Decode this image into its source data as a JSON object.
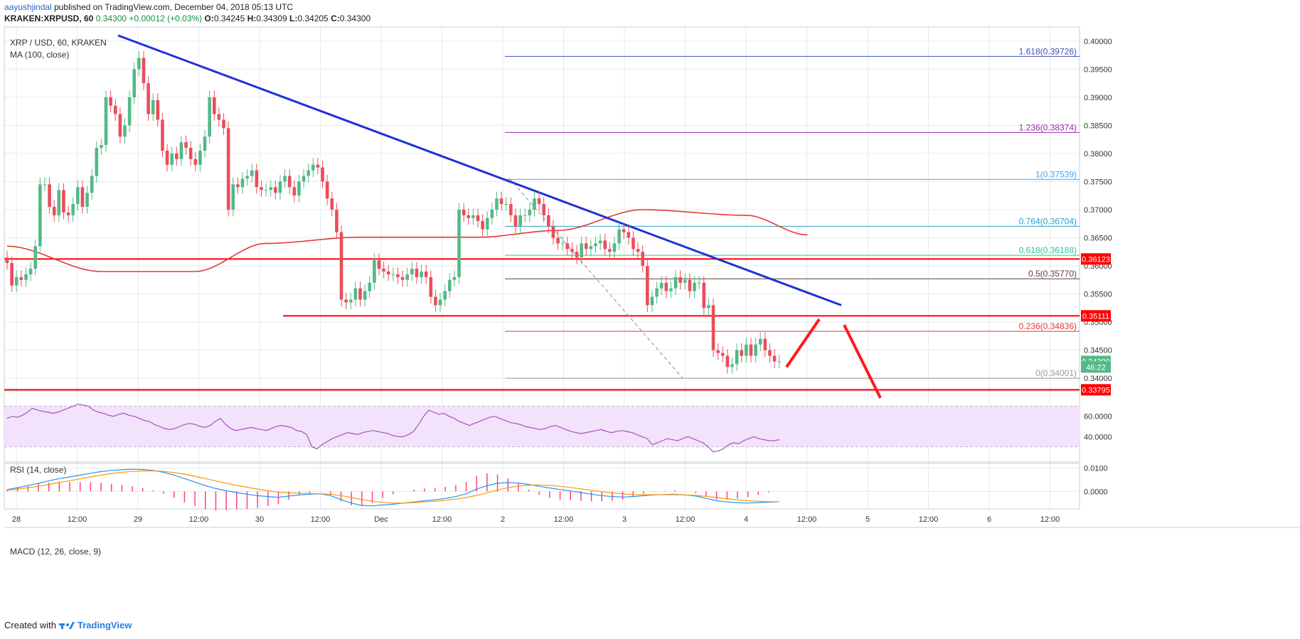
{
  "header": {
    "user": "aayushjindal",
    "published": "published on TradingView.com, December 04, 2018 05:13 UTC",
    "symbol": "KRAKEN:XRPUSD, 60",
    "last": "0.34300",
    "change": "+0.00012 (+0.03%)",
    "o_label": "O:",
    "o": "0.34245",
    "h_label": "H:",
    "h": "0.34309",
    "l_label": "L:",
    "l": "0.34205",
    "c_label": "C:",
    "c": "0.34300"
  },
  "pane_main": {
    "title": "XRP / USD, 60, KRAKEN",
    "ma_label": "MA (100, close)"
  },
  "pane_rsi": {
    "title": "RSI (14, close)"
  },
  "pane_macd": {
    "title": "MACD (12, 26, close, 9)"
  },
  "footer": {
    "created": "Created with",
    "brand": "TradingView"
  },
  "colors": {
    "up": "#53b987",
    "down": "#eb4d5c",
    "ma": "#e53935",
    "trend": "#1e32d4",
    "support": "#ff0000",
    "fib_1618": "#3f51b5",
    "fib_1236": "#9c27b0",
    "fib_1": "#42a5f5",
    "fib_0764": "#26a0c8",
    "fib_0618": "#26c6a0",
    "fib_05": "#5d4037",
    "fib_0236": "#e53935",
    "fib_0": "#999999",
    "rsi_line": "#a653bf",
    "rsi_band": "#f3e2fb",
    "macd": "#2196f3",
    "signal": "#ff9800",
    "hist": "#ff4081"
  },
  "chart_data": {
    "type": "candlestick",
    "x_tick_labels": [
      "28",
      "12:00",
      "29",
      "12:00",
      "30",
      "12:00",
      "Dec",
      "12:00",
      "2",
      "12:00",
      "3",
      "12:00",
      "4",
      "12:00",
      "5",
      "12:00",
      "6",
      "12:00"
    ],
    "y_axis": {
      "range": [
        0.338,
        0.4025
      ],
      "ticks": [
        "0.40000",
        "0.39500",
        "0.39000",
        "0.38500",
        "0.38000",
        "0.37500",
        "0.37000",
        "0.36500",
        "0.36000",
        "0.35500",
        "0.35000",
        "0.34500",
        "0.34000"
      ]
    },
    "price_labels": [
      {
        "text": "0.36123",
        "value": 0.36123
      },
      {
        "text": "0.35111",
        "value": 0.35111
      },
      {
        "text": "0.34300",
        "value": 0.343
      },
      {
        "text": "46:22",
        "value": 0.342
      },
      {
        "text": "0.33795",
        "value": 0.33795
      }
    ],
    "fibonacci": [
      {
        "text": "1.618(0.39726)",
        "value": 0.39726,
        "color_key": "fib_1618"
      },
      {
        "text": "1.236(0.38374)",
        "value": 0.38374,
        "color_key": "fib_1236"
      },
      {
        "text": "1(0.37539)",
        "value": 0.37539,
        "color_key": "fib_1"
      },
      {
        "text": "0.764(0.36704)",
        "value": 0.36704,
        "color_key": "fib_0764"
      },
      {
        "text": "0.618(0.36188)",
        "value": 0.36188,
        "color_key": "fib_0618"
      },
      {
        "text": "0.5(0.35770)",
        "value": 0.3577,
        "color_key": "fib_05"
      },
      {
        "text": "0.236(0.34836)",
        "value": 0.34836,
        "color_key": "fib_0236"
      },
      {
        "text": "0(0.34001)",
        "value": 0.34001,
        "color_key": "fib_0"
      }
    ],
    "support_resistance": [
      0.36123,
      0.35111,
      0.33795
    ],
    "candles_close": [
      0.3605,
      0.3565,
      0.358,
      0.3575,
      0.3585,
      0.3595,
      0.3635,
      0.3745,
      0.3745,
      0.3705,
      0.369,
      0.3735,
      0.3695,
      0.369,
      0.371,
      0.374,
      0.3705,
      0.373,
      0.376,
      0.381,
      0.3815,
      0.39,
      0.3885,
      0.387,
      0.383,
      0.385,
      0.39,
      0.395,
      0.397,
      0.3925,
      0.387,
      0.3895,
      0.386,
      0.3805,
      0.378,
      0.38,
      0.379,
      0.382,
      0.381,
      0.379,
      0.378,
      0.3805,
      0.383,
      0.39,
      0.387,
      0.386,
      0.3845,
      0.37,
      0.3745,
      0.374,
      0.3755,
      0.376,
      0.377,
      0.374,
      0.3735,
      0.3735,
      0.374,
      0.373,
      0.375,
      0.376,
      0.374,
      0.3725,
      0.375,
      0.376,
      0.377,
      0.378,
      0.3775,
      0.375,
      0.372,
      0.37,
      0.366,
      0.354,
      0.3535,
      0.354,
      0.356,
      0.354,
      0.3555,
      0.357,
      0.361,
      0.3595,
      0.359,
      0.3585,
      0.3585,
      0.358,
      0.3575,
      0.3585,
      0.3595,
      0.358,
      0.359,
      0.358,
      0.3545,
      0.353,
      0.354,
      0.3555,
      0.3575,
      0.358,
      0.37,
      0.369,
      0.3685,
      0.369,
      0.368,
      0.3665,
      0.3685,
      0.37,
      0.372,
      0.371,
      0.371,
      0.369,
      0.367,
      0.369,
      0.369,
      0.37,
      0.372,
      0.371,
      0.369,
      0.367,
      0.365,
      0.364,
      0.364,
      0.363,
      0.3625,
      0.3615,
      0.364,
      0.363,
      0.3635,
      0.364,
      0.3645,
      0.363,
      0.3625,
      0.364,
      0.3665,
      0.366,
      0.365,
      0.363,
      0.3625,
      0.36,
      0.353,
      0.3545,
      0.356,
      0.357,
      0.3555,
      0.356,
      0.358,
      0.357,
      0.3575,
      0.3555,
      0.357,
      0.357,
      0.3525,
      0.353,
      0.345,
      0.3445,
      0.344,
      0.342,
      0.3425,
      0.345,
      0.344,
      0.346,
      0.344,
      0.346,
      0.347,
      0.345,
      0.344,
      0.343,
      0.343
    ],
    "ma100_anchor": [
      [
        0,
        0.3635
      ],
      [
        20,
        0.359
      ],
      [
        40,
        0.359
      ],
      [
        55,
        0.364
      ],
      [
        75,
        0.3651
      ],
      [
        100,
        0.3651
      ],
      [
        117,
        0.3663
      ],
      [
        135,
        0.37
      ],
      [
        157,
        0.369
      ],
      [
        170,
        0.3655
      ]
    ],
    "trendline": [
      [
        0.401,
        0
      ],
      [
        0.353,
        1
      ]
    ],
    "dashed_line": [
      [
        0.3756,
        0
      ],
      [
        0.34,
        1
      ]
    ],
    "projection": [
      [
        0.342,
        0.3505
      ],
      [
        0.3495,
        0.3365
      ]
    ],
    "rsi": {
      "range": [
        15,
        85
      ],
      "ticks": [
        "60.0000",
        "40.0000"
      ],
      "band": [
        30,
        70
      ],
      "values": [
        58,
        60,
        59,
        61,
        64,
        68,
        66,
        65,
        64,
        63,
        64,
        66,
        68,
        70,
        72,
        71,
        70,
        66,
        64,
        63,
        61,
        60,
        62,
        63,
        61,
        60,
        58,
        56,
        55,
        52,
        50,
        48,
        47,
        48,
        50,
        52,
        53,
        52,
        50,
        49,
        51,
        55,
        58,
        52,
        48,
        46,
        47,
        48,
        49,
        48,
        47,
        46,
        48,
        50,
        51,
        50,
        49,
        46,
        45,
        42,
        30,
        28,
        32,
        35,
        38,
        40,
        42,
        44,
        43,
        42,
        44,
        45,
        46,
        45,
        44,
        43,
        41,
        40,
        40,
        42,
        45,
        52,
        60,
        66,
        64,
        62,
        63,
        60,
        58,
        55,
        53,
        51,
        53,
        55,
        57,
        59,
        60,
        58,
        56,
        54,
        53,
        52,
        50,
        49,
        48,
        47,
        48,
        50,
        51,
        49,
        47,
        45,
        44,
        43,
        44,
        45,
        46,
        47,
        45,
        44,
        45,
        46,
        45,
        44,
        42,
        40,
        38,
        32,
        34,
        36,
        38,
        37,
        36,
        38,
        40,
        38,
        36,
        34,
        30,
        25,
        26,
        28,
        32,
        34,
        33,
        36,
        38,
        40,
        38,
        37,
        36,
        36,
        37
      ],
      "dots": [
        4,
        6,
        8,
        10,
        12,
        14,
        16,
        18
      ]
    },
    "macd": {
      "range": [
        -0.0075,
        0.012
      ],
      "ticks": [
        "0.0100",
        "0.0000"
      ],
      "macd_values": [
        0.0008,
        0.0016,
        0.0025,
        0.0035,
        0.0045,
        0.0055,
        0.0062,
        0.007,
        0.0078,
        0.0085,
        0.009,
        0.0093,
        0.0095,
        0.0094,
        0.009,
        0.0082,
        0.007,
        0.0055,
        0.004,
        0.0025,
        0.0012,
        0.0003,
        -0.0005,
        -0.0012,
        -0.0018,
        -0.0022,
        -0.0025,
        -0.002,
        -0.0015,
        -0.0012,
        -0.001,
        -0.0018,
        -0.0035,
        -0.005,
        -0.006,
        -0.0062,
        -0.0058,
        -0.0055,
        -0.005,
        -0.0045,
        -0.004,
        -0.0036,
        -0.003,
        -0.0022,
        -0.001,
        0.001,
        0.0025,
        0.0035,
        0.0038,
        0.0036,
        0.003,
        0.0022,
        0.0015,
        0.0008,
        0.0002,
        -0.0005,
        -0.0012,
        -0.0018,
        -0.0022,
        -0.0024,
        -0.0022,
        -0.0018,
        -0.0015,
        -0.0013,
        -0.0012,
        -0.0015,
        -0.002,
        -0.003,
        -0.004,
        -0.0045,
        -0.0048,
        -0.005,
        -0.0048,
        -0.0046,
        -0.0044
      ],
      "signal_values": [
        0.0005,
        0.001,
        0.0016,
        0.0022,
        0.003,
        0.0038,
        0.0046,
        0.0054,
        0.0062,
        0.007,
        0.0077,
        0.0082,
        0.0086,
        0.0088,
        0.0088,
        0.0086,
        0.0081,
        0.0074,
        0.0065,
        0.0055,
        0.0045,
        0.0035,
        0.0026,
        0.0018,
        0.001,
        0.0003,
        -0.0003,
        -0.0006,
        -0.0008,
        -0.0009,
        -0.001,
        -0.0012,
        -0.0018,
        -0.0026,
        -0.0035,
        -0.0042,
        -0.0047,
        -0.005,
        -0.005,
        -0.0048,
        -0.0045,
        -0.0042,
        -0.0038,
        -0.0033,
        -0.0026,
        -0.0017,
        -0.0006,
        0.0006,
        0.0016,
        0.0023,
        0.0027,
        0.0028,
        0.0026,
        0.0022,
        0.0017,
        0.0011,
        0.0005,
        -0.0001,
        -0.0006,
        -0.001,
        -0.0013,
        -0.0014,
        -0.0014,
        -0.0014,
        -0.0014,
        -0.0015,
        -0.0017,
        -0.0021,
        -0.0026,
        -0.0031,
        -0.0036,
        -0.004,
        -0.0042,
        -0.0044,
        -0.0044
      ]
    }
  }
}
